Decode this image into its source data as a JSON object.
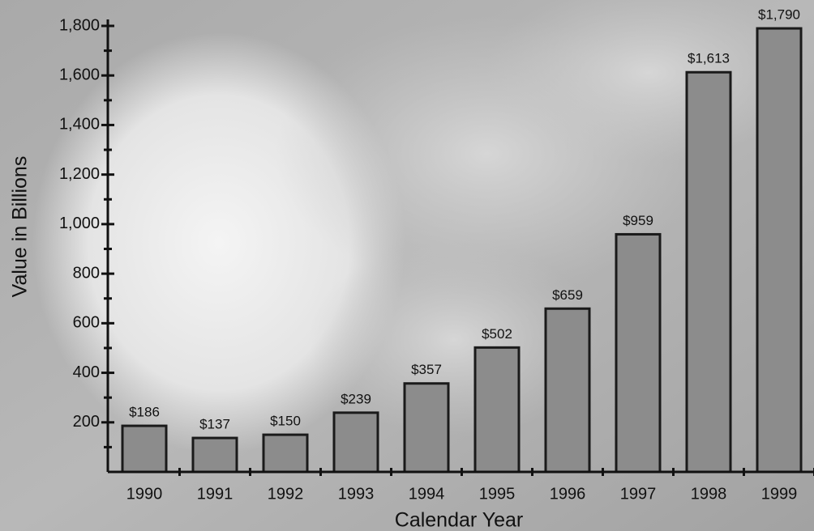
{
  "chart_data": {
    "type": "bar",
    "x_label": "Calendar Year",
    "y_label": "Value in Billions",
    "categories": [
      "1990",
      "1991",
      "1992",
      "1993",
      "1994",
      "1995",
      "1996",
      "1997",
      "1998",
      "1999"
    ],
    "values": [
      186,
      137,
      150,
      239,
      357,
      502,
      659,
      959,
      1613,
      1790
    ],
    "value_labels": [
      "$186",
      "$137",
      "$150",
      "$239",
      "$357",
      "$502",
      "$659",
      "$959",
      "$1,613",
      "$1,790"
    ],
    "color": "#8c8c8c",
    "ylim": [
      0,
      1800
    ],
    "yticks": [
      {
        "value": 200,
        "label": "200"
      },
      {
        "value": 400,
        "label": "400"
      },
      {
        "value": 600,
        "label": "600"
      },
      {
        "value": 800,
        "label": "800"
      },
      {
        "value": 1000,
        "label": "1,000"
      },
      {
        "value": 1200,
        "label": "1,200"
      },
      {
        "value": 1400,
        "label": "1,400"
      },
      {
        "value": 1600,
        "label": "1,600"
      },
      {
        "value": 1800,
        "label": "1,800"
      }
    ],
    "minor_yticks": [
      100,
      300,
      500,
      700,
      900,
      1100,
      1300,
      1500,
      1700
    ]
  }
}
